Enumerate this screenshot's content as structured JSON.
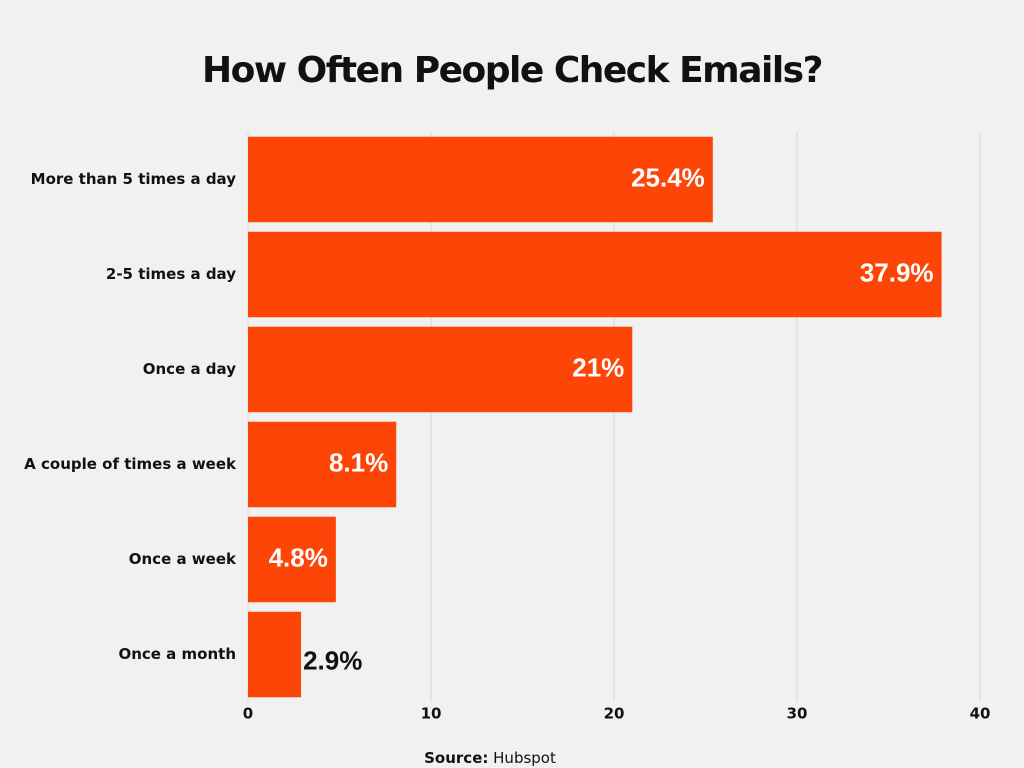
{
  "chart_data": {
    "type": "barh",
    "title": "How Often People Check Emails?",
    "categories": [
      "More than 5 times a day",
      "2-5 times a day",
      "Once a day",
      "A couple of times a week",
      "Once a week",
      "Once a month"
    ],
    "values": [
      25.4,
      37.9,
      21,
      8.1,
      4.8,
      2.9
    ],
    "value_labels": [
      "25.4%",
      "37.9%",
      "21%",
      "8.1%",
      "4.8%",
      "2.9%"
    ],
    "color": "#fe4508",
    "xlim": [
      0,
      40
    ],
    "xticks": [
      0,
      10,
      20,
      30,
      40
    ],
    "grid": true,
    "source_label": "Source:",
    "source": "Hubspot"
  }
}
